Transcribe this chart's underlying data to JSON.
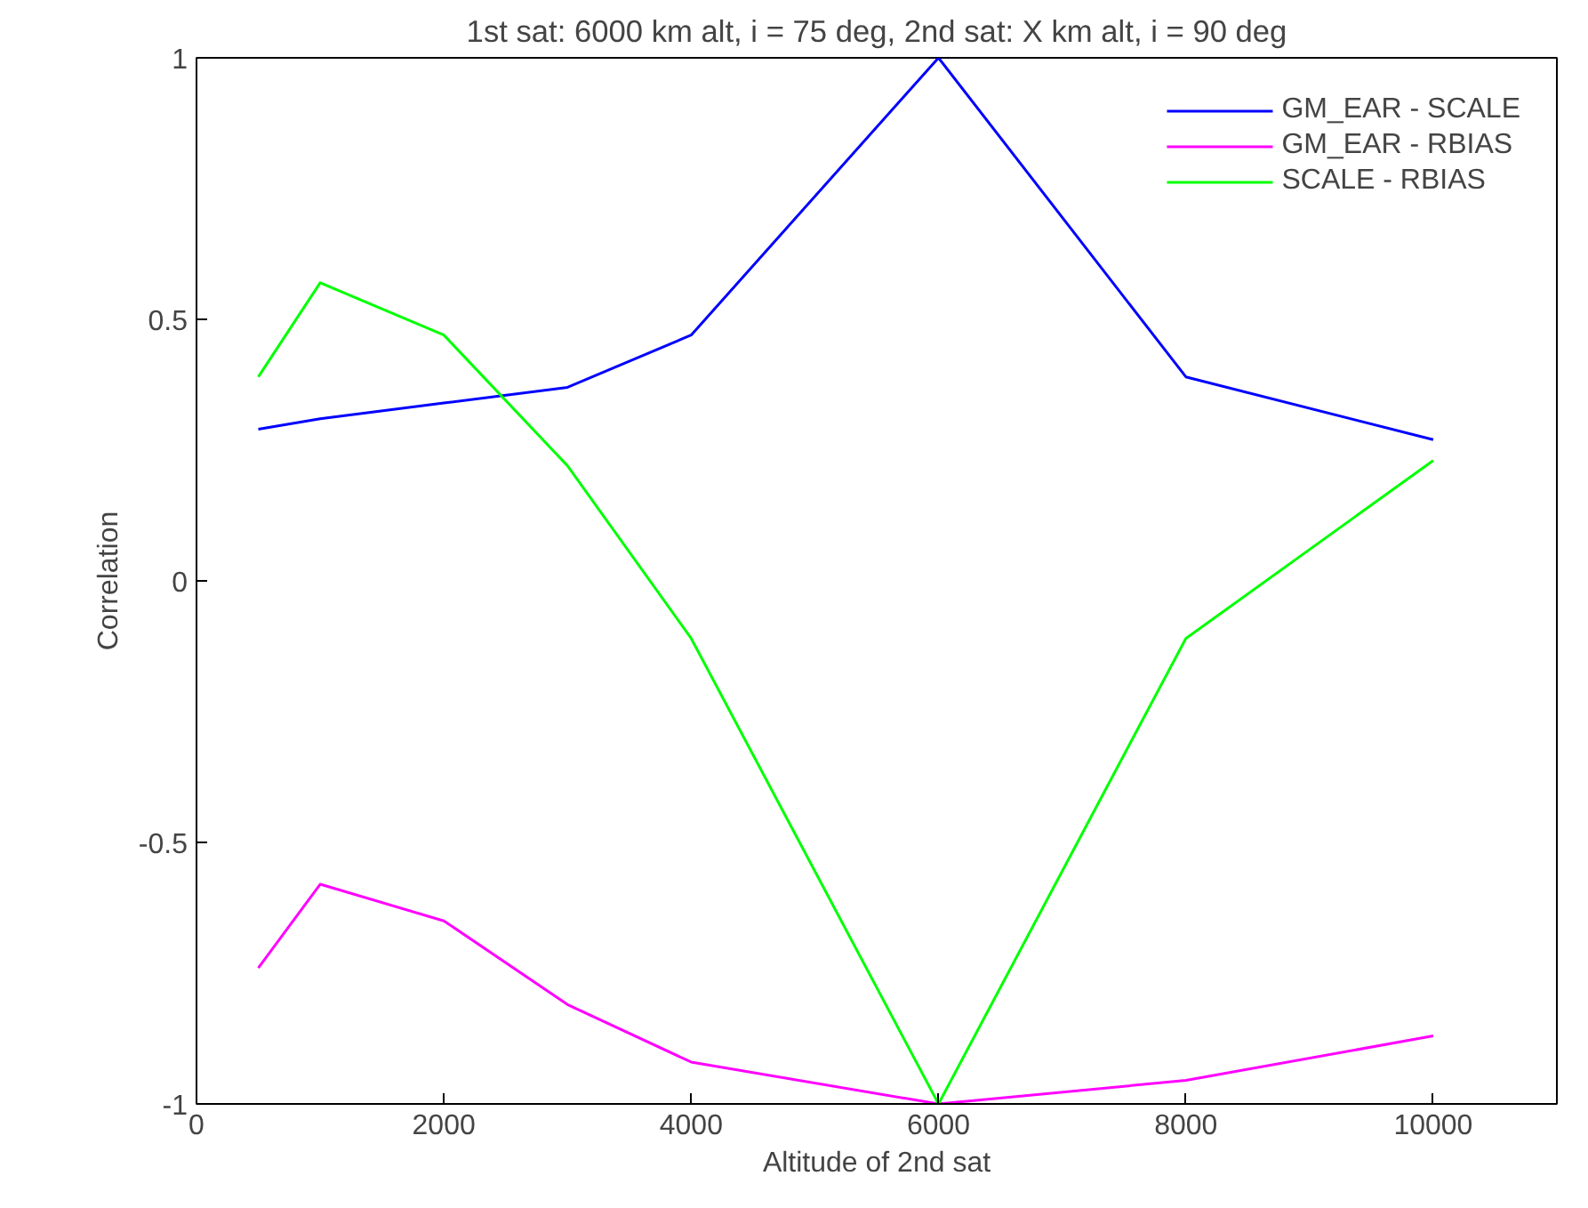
{
  "chart_data": {
    "type": "line",
    "title": "1st sat: 6000 km alt, i = 75 deg, 2nd sat: X km alt, i = 90 deg",
    "xlabel": "Altitude of 2nd sat",
    "ylabel": "Correlation",
    "x": [
      500,
      1000,
      2000,
      3000,
      4000,
      6000,
      8000,
      10000
    ],
    "series": [
      {
        "name": "GM_EAR - SCALE",
        "color": "#0000ff",
        "values": [
          0.29,
          0.31,
          0.34,
          0.37,
          0.47,
          1.0,
          0.39,
          0.27
        ]
      },
      {
        "name": "GM_EAR - RBIAS",
        "color": "#ff00ff",
        "values": [
          -0.74,
          -0.58,
          -0.65,
          -0.81,
          -0.92,
          -1.0,
          -0.955,
          -0.87
        ]
      },
      {
        "name": "SCALE - RBIAS",
        "color": "#00ff00",
        "values": [
          0.39,
          0.57,
          0.47,
          0.22,
          -0.11,
          -1.0,
          -0.11,
          0.23
        ]
      }
    ],
    "xlim": [
      0,
      11000
    ],
    "ylim": [
      -1,
      1
    ],
    "xticks": [
      0,
      2000,
      4000,
      6000,
      8000,
      10000
    ],
    "yticks": [
      -1,
      -0.5,
      0,
      0.5,
      1
    ],
    "grid": false,
    "legend": "top right",
    "marker": "none",
    "line_style": "solid"
  }
}
